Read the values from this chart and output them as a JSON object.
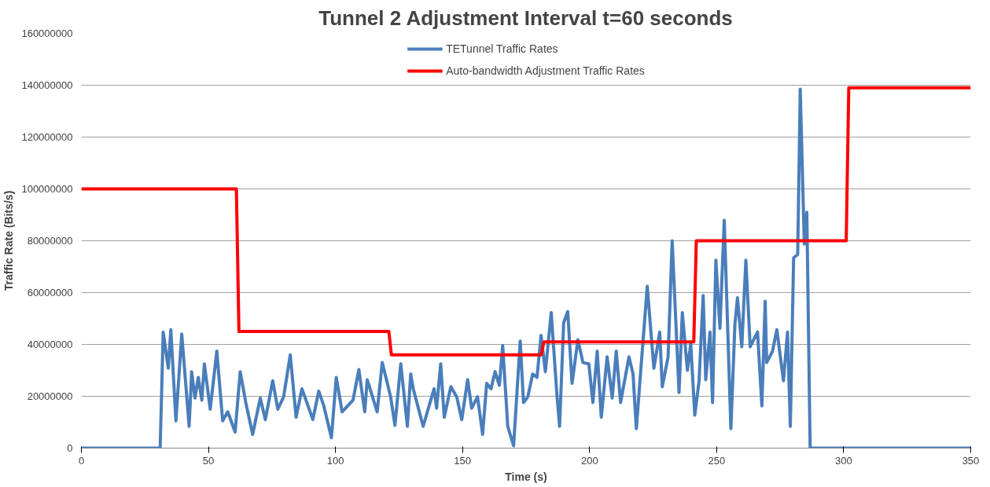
{
  "chart_data": {
    "type": "line",
    "title": "Tunnel 2 Adjustment Interval t=60 seconds",
    "xlabel": "Time (s)",
    "ylabel": "Traffic Rate (Bits/s)",
    "xlim": [
      0,
      350
    ],
    "xticks": [
      0,
      50,
      100,
      150,
      200,
      250,
      300,
      350
    ],
    "ylim": [
      0,
      160000000
    ],
    "yticks": [
      0,
      20000000,
      40000000,
      60000000,
      80000000,
      100000000,
      120000000,
      140000000,
      160000000
    ],
    "grid": "y",
    "legend": "top",
    "marker": "none",
    "line_style": "solid",
    "series": [
      {
        "name": "TETunnel Traffic Rates",
        "color": "#4a7ebb",
        "x": [
          0,
          31,
          32.2,
          34.2,
          35.2,
          37.2,
          39.5,
          42.4,
          43.4,
          44.7,
          46,
          47.4,
          48.4,
          50.7,
          53.3,
          55.6,
          57.6,
          60.5,
          62.5,
          64.8,
          67.4,
          70.4,
          72.4,
          75.3,
          77.3,
          79.6,
          82.2,
          84.5,
          86.8,
          91.1,
          93.4,
          95.4,
          98.4,
          100.3,
          102.6,
          106.9,
          109.2,
          111.5,
          112.5,
          116.4,
          118.4,
          121.7,
          123.4,
          125.7,
          128.3,
          129.6,
          130.6,
          134.5,
          138.8,
          139.8,
          141.4,
          142.8,
          145.4,
          147.7,
          149.7,
          152,
          153.6,
          155.9,
          157.9,
          159.5,
          161.2,
          162.8,
          164.5,
          165.8,
          167.8,
          170.1,
          172.7,
          174,
          175.7,
          177.6,
          179.3,
          180.9,
          182.6,
          184.9,
          187.2,
          188.2,
          189.8,
          191.4,
          193.1,
          195.4,
          197.4,
          199.7,
          201.3,
          203,
          204.6,
          206.9,
          208.9,
          210.5,
          212.2,
          215.5,
          217.1,
          218.4,
          220.1,
          222.7,
          225.3,
          227.6,
          228.6,
          230.9,
          232.5,
          235.2,
          236.5,
          238.5,
          239.8,
          241.4,
          243.1,
          244.7,
          245.7,
          247.4,
          248.4,
          249.7,
          251.3,
          253,
          255.6,
          257.2,
          258.2,
          259.9,
          261.5,
          263.2,
          266.1,
          267.8,
          269.1,
          269.7,
          272,
          273.7,
          276.3,
          277.9,
          279,
          280.3,
          281.9,
          282.9,
          284.5,
          285.5,
          286.8,
          350
        ],
        "values": [
          0,
          0,
          44800000,
          30800000,
          45700000,
          10500000,
          44000000,
          8400000,
          29500000,
          19300000,
          27300000,
          18500000,
          32500000,
          15000000,
          37400000,
          10500000,
          14000000,
          6200000,
          29500000,
          17100000,
          5300000,
          19300000,
          11000000,
          26000000,
          15000000,
          19800000,
          36000000,
          11900000,
          22900000,
          11000000,
          22000000,
          16300000,
          4000000,
          27300000,
          14000000,
          18500000,
          30300000,
          14000000,
          26400000,
          14000000,
          33000000,
          19800000,
          8800000,
          32500000,
          8400000,
          28600000,
          22900000,
          8400000,
          22900000,
          15400000,
          32500000,
          11900000,
          23700000,
          19800000,
          11000000,
          26400000,
          15400000,
          19800000,
          5300000,
          25000000,
          22900000,
          29500000,
          24200000,
          39600000,
          8400000,
          900000,
          41300000,
          17600000,
          19800000,
          28600000,
          27300000,
          43500000,
          29500000,
          52300000,
          19800000,
          8400000,
          48400000,
          52700000,
          25000000,
          41800000,
          33000000,
          32500000,
          17600000,
          37400000,
          11900000,
          35200000,
          19300000,
          37400000,
          17600000,
          35200000,
          28600000,
          7500000,
          29500000,
          62400000,
          30800000,
          44800000,
          23700000,
          35200000,
          80000000,
          21500000,
          52300000,
          30000000,
          40400000,
          12700000,
          26000000,
          58900000,
          26400000,
          44800000,
          17600000,
          72500000,
          46200000,
          87900000,
          7500000,
          47900000,
          58000000,
          39100000,
          72500000,
          39100000,
          44800000,
          16300000,
          56700000,
          33000000,
          37400000,
          45700000,
          26000000,
          44800000,
          8400000,
          73400000,
          74700000,
          138500000,
          78700000,
          91000000,
          0,
          0
        ]
      },
      {
        "name": "Auto-bandwidth Adjustment Traffic Rates",
        "color": "#ff0000",
        "x": [
          0,
          61,
          62,
          121,
          122,
          181,
          182,
          241,
          242,
          301,
          302,
          350
        ],
        "values": [
          100000000,
          100000000,
          45000000,
          45000000,
          36000000,
          36000000,
          41000000,
          41000000,
          80000000,
          80000000,
          139000000,
          139000000
        ]
      }
    ]
  }
}
